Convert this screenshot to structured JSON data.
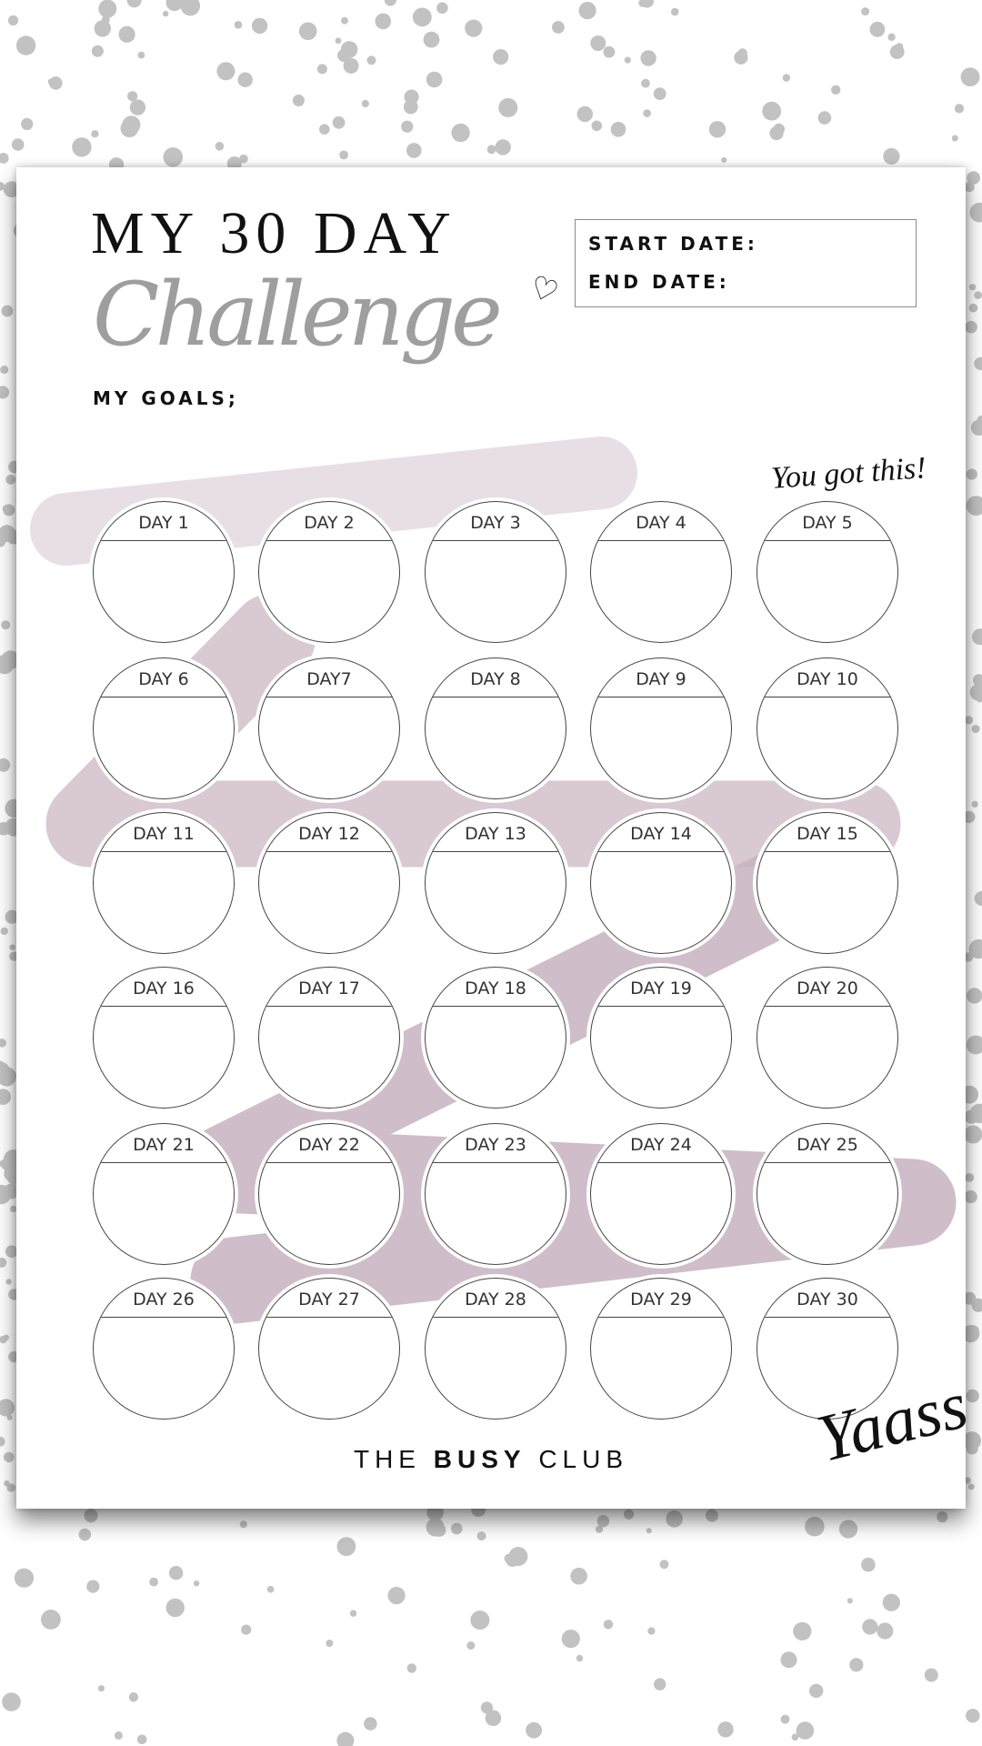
{
  "colors": {
    "dots": "#c2c2c2",
    "brush": "#c7b3c0",
    "script": "#9e9e9e",
    "ink": "#111111"
  },
  "header": {
    "title": "MY 30 DAY",
    "script_title": "Challenge",
    "heart_icon": "heart-icon"
  },
  "dates": {
    "start_label": "START DATE:",
    "end_label": "END DATE:"
  },
  "goals_label": "MY GOALS;",
  "encouragement_top": "You got this!",
  "encouragement_bottom": "Yaass!",
  "brand": {
    "the": "THE",
    "busy": "BUSY",
    "club": "CLUB"
  },
  "days": [
    "DAY 1",
    "DAY 2",
    "DAY 3",
    "DAY 4",
    "DAY 5",
    "DAY 6",
    "DAY7",
    "DAY 8",
    "DAY 9",
    "DAY 10",
    "DAY 11",
    "DAY 12",
    "DAY 13",
    "DAY 14",
    "DAY 15",
    "DAY 16",
    "DAY 17",
    "DAY 18",
    "DAY 19",
    "DAY 20",
    "DAY 21",
    "DAY 22",
    "DAY 23",
    "DAY 24",
    "DAY 25",
    "DAY 26",
    "DAY 27",
    "DAY 28",
    "DAY 29",
    "DAY 30"
  ]
}
